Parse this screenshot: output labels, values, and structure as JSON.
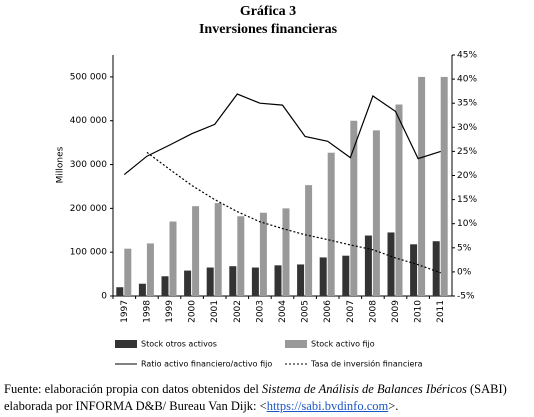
{
  "chart_data": {
    "type": "bar-line",
    "title": "Gráfica 3",
    "subtitle": "Inversiones financieras",
    "y_label": "Millones",
    "categories": [
      "1997",
      "1998",
      "1999",
      "2000",
      "2001",
      "2002",
      "2003",
      "2004",
      "2005",
      "2006",
      "2007",
      "2008",
      "2009",
      "2010",
      "2011"
    ],
    "series": [
      {
        "name": "Stock otros  activos",
        "color": "#333333",
        "kind": "bar",
        "values": [
          20000,
          28000,
          45000,
          58000,
          65000,
          68000,
          65000,
          70000,
          72000,
          88000,
          92000,
          138000,
          145000,
          118000,
          125000
        ]
      },
      {
        "name": "Stock activo fijo",
        "color": "#999999",
        "kind": "bar",
        "values": [
          108000,
          120000,
          170000,
          205000,
          212000,
          182000,
          190000,
          200000,
          253000,
          327000,
          400000,
          378000,
          437000,
          500000,
          500000
        ]
      },
      {
        "name": "Ratio activo financiero/activo fijo",
        "color": "#000000",
        "kind": "line",
        "axis": "y2",
        "values": [
          20.2,
          24,
          26.3,
          28.7,
          30.6,
          36.9,
          35,
          34.6,
          28.1,
          27.1,
          23.7,
          36.5,
          33.3,
          23.5,
          25
        ]
      },
      {
        "name": "Tasa de inversión financiera",
        "color": "#000000",
        "kind": "dashed",
        "axis": "y2",
        "values": [
          null,
          24.8,
          21.3,
          17.9,
          15,
          12.5,
          10.4,
          9,
          7.7,
          6.7,
          5.6,
          4.6,
          2.9,
          1.5,
          -0.2
        ]
      }
    ],
    "ylim": [
      0,
      550000
    ],
    "yticks": [
      0,
      {
        "value": 100000,
        "label": "100 000"
      },
      {
        "value": 200000,
        "label": "200 000"
      },
      {
        "value": 300000,
        "label": "300 000"
      },
      {
        "value": 400000,
        "label": "400 000"
      },
      {
        "value": 500000,
        "label": "500 000"
      }
    ],
    "y2lim": [
      -5,
      45
    ],
    "y2ticks": [
      {
        "value": -5,
        "label": "-5%"
      },
      {
        "value": 0,
        "label": "0%"
      },
      {
        "value": 5,
        "label": "5%"
      },
      {
        "value": 10,
        "label": "10%"
      },
      {
        "value": 15,
        "label": "15%"
      },
      {
        "value": 20,
        "label": "20%"
      },
      {
        "value": 25,
        "label": "25%"
      },
      {
        "value": 30,
        "label": "30%"
      },
      {
        "value": 35,
        "label": "35%"
      },
      {
        "value": 40,
        "label": "40%"
      },
      {
        "value": 45,
        "label": "45%"
      }
    ]
  },
  "footnote": {
    "line1": [
      "Fuente: elaboración propia con datos obtenidos del ",
      "Sistema de Análisis de Balances Ibéricos",
      " (SABI)"
    ],
    "line2": [
      "elaborada por INFORMA D&B/ Bureau Van Dijk: <",
      "https://sabi.bvdinfo.com",
      ">."
    ]
  }
}
